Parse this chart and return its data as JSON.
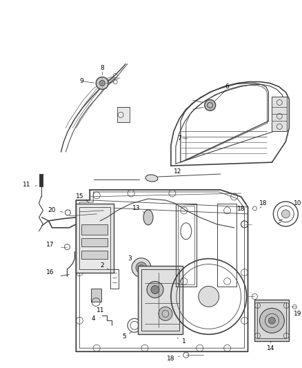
{
  "background_color": "#ffffff",
  "fig_width": 4.38,
  "fig_height": 5.33,
  "dpi": 100,
  "line_color": "#404040",
  "label_color": "#000000",
  "label_fontsize": 6.5
}
